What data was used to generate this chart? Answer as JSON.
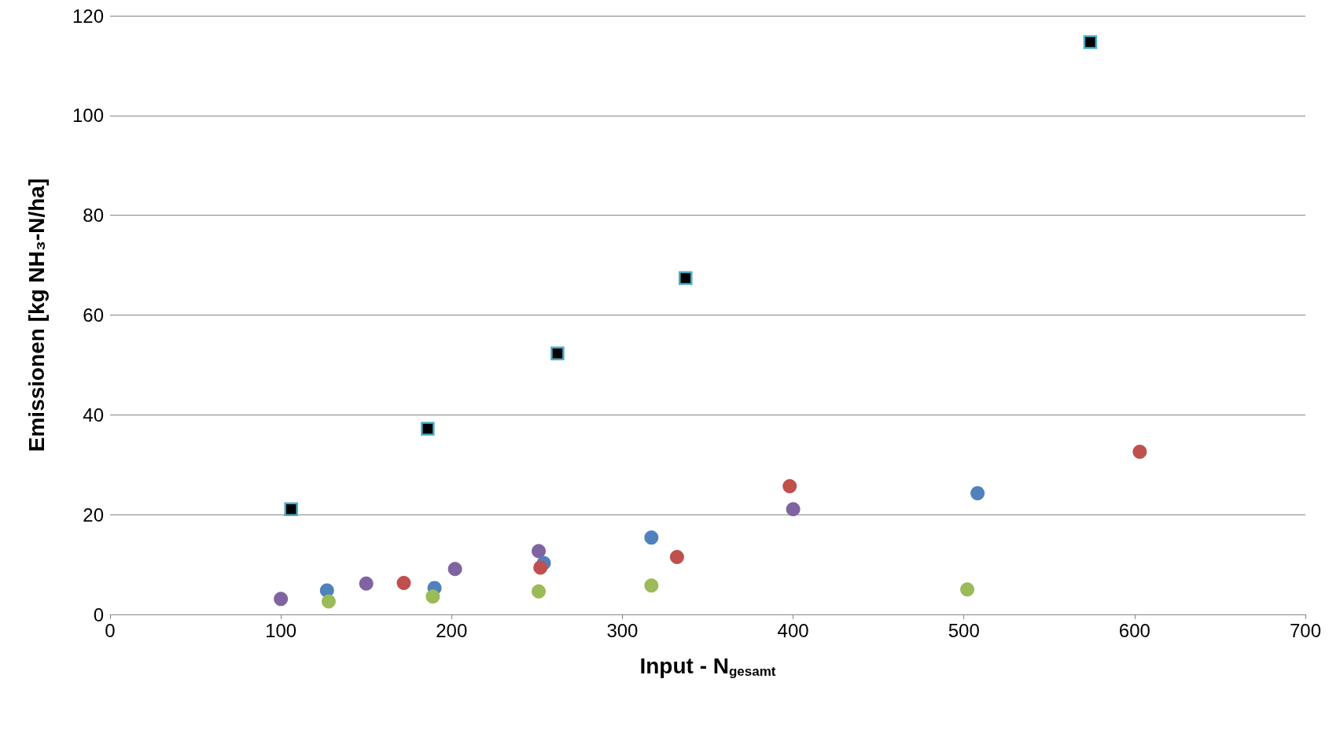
{
  "chart_data": {
    "type": "scatter",
    "xlabel": "Input - N$_{gesamt}$",
    "ylabel": "Emissionen [kg NH₃-N/ha]",
    "xlim": [
      0,
      700
    ],
    "xticks": [
      0,
      100,
      200,
      300,
      400,
      500,
      600,
      700
    ],
    "ylim": [
      0,
      120
    ],
    "yticks": [
      0,
      20,
      40,
      60,
      80,
      100,
      120
    ],
    "grid": "y",
    "series": [
      {
        "color": "#000000",
        "marker": "square",
        "x": [
          106,
          186,
          262,
          337,
          574
        ],
        "values": [
          21.1,
          37.2,
          52.3,
          67.4,
          114.7
        ]
      },
      {
        "color": "#4f81bd",
        "marker": "circle",
        "x": [
          127,
          190,
          254,
          317,
          508
        ],
        "values": [
          4.8,
          5.3,
          10.3,
          15.4,
          24.3
        ]
      },
      {
        "color": "#c0504d",
        "marker": "circle",
        "x": [
          172,
          252,
          332,
          398,
          603
        ],
        "values": [
          6.3,
          9.4,
          11.5,
          25.7,
          32.6
        ]
      },
      {
        "color": "#8064a2",
        "marker": "circle",
        "x": [
          100,
          150,
          202,
          251,
          400
        ],
        "values": [
          3.1,
          6.2,
          9.1,
          12.7,
          21.1
        ]
      },
      {
        "color": "#9bbb59",
        "marker": "circle",
        "x": [
          128,
          189,
          251,
          317,
          502
        ],
        "values": [
          2.6,
          3.6,
          4.6,
          5.8,
          5.0
        ]
      }
    ]
  }
}
